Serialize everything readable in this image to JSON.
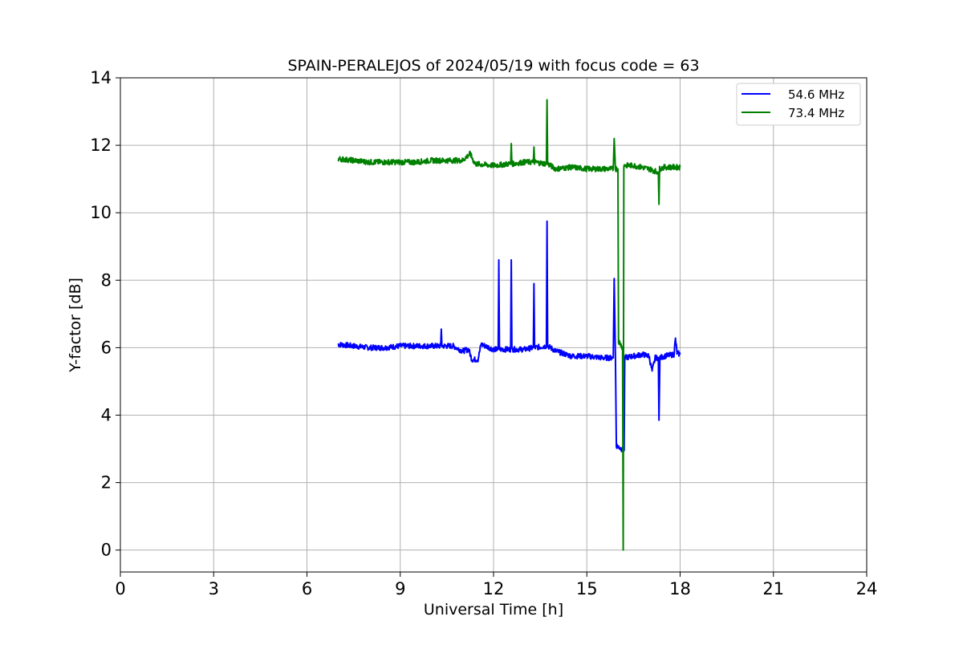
{
  "chart_data": {
    "type": "line",
    "title": "SPAIN-PERALEJOS of 2024/05/19 with focus code = 63",
    "xlabel": "Universal Time [h]",
    "ylabel": "Y-factor [dB]",
    "xlim": [
      0,
      24
    ],
    "ylim": [
      -0.65,
      14
    ],
    "xticks": [
      0,
      3,
      6,
      9,
      12,
      15,
      18,
      21,
      24
    ],
    "yticks": [
      0,
      2,
      4,
      6,
      8,
      10,
      12,
      14
    ],
    "grid": true,
    "legend_position": "top-right",
    "series": [
      {
        "name": "54.6 MHz",
        "color": "#0000ff",
        "noise": 0.08,
        "points": [
          [
            7.0,
            6.1
          ],
          [
            7.5,
            6.05
          ],
          [
            8.0,
            6.0
          ],
          [
            8.5,
            6.0
          ],
          [
            9.0,
            6.05
          ],
          [
            9.5,
            6.05
          ],
          [
            10.0,
            6.05
          ],
          [
            10.3,
            6.05
          ],
          [
            10.32,
            6.55
          ],
          [
            10.34,
            6.05
          ],
          [
            10.7,
            6.05
          ],
          [
            11.0,
            5.9
          ],
          [
            11.2,
            5.95
          ],
          [
            11.3,
            5.65
          ],
          [
            11.5,
            5.65
          ],
          [
            11.6,
            6.1
          ],
          [
            12.0,
            5.95
          ],
          [
            12.15,
            5.95
          ],
          [
            12.17,
            8.6
          ],
          [
            12.19,
            5.95
          ],
          [
            12.55,
            5.95
          ],
          [
            12.57,
            8.6
          ],
          [
            12.59,
            5.95
          ],
          [
            13.0,
            5.95
          ],
          [
            13.28,
            6.0
          ],
          [
            13.3,
            7.9
          ],
          [
            13.32,
            6.0
          ],
          [
            13.7,
            6.05
          ],
          [
            13.72,
            9.75
          ],
          [
            13.74,
            6.05
          ],
          [
            14.0,
            5.9
          ],
          [
            14.5,
            5.75
          ],
          [
            15.0,
            5.75
          ],
          [
            15.5,
            5.7
          ],
          [
            15.85,
            5.7
          ],
          [
            15.88,
            8.05
          ],
          [
            15.92,
            5.7
          ],
          [
            15.95,
            3.1
          ],
          [
            16.2,
            2.95
          ],
          [
            16.22,
            5.7
          ],
          [
            16.5,
            5.75
          ],
          [
            16.8,
            5.8
          ],
          [
            17.0,
            5.75
          ],
          [
            17.1,
            5.3
          ],
          [
            17.2,
            5.7
          ],
          [
            17.3,
            5.7
          ],
          [
            17.32,
            3.85
          ],
          [
            17.35,
            5.7
          ],
          [
            17.5,
            5.75
          ],
          [
            17.8,
            5.8
          ],
          [
            17.85,
            6.25
          ],
          [
            17.9,
            5.85
          ],
          [
            18.0,
            5.8
          ]
        ]
      },
      {
        "name": "73.4 MHz",
        "color": "#008000",
        "noise": 0.08,
        "points": [
          [
            7.0,
            11.6
          ],
          [
            7.5,
            11.55
          ],
          [
            8.0,
            11.5
          ],
          [
            8.5,
            11.5
          ],
          [
            9.0,
            11.5
          ],
          [
            9.5,
            11.5
          ],
          [
            10.0,
            11.55
          ],
          [
            10.5,
            11.55
          ],
          [
            11.0,
            11.55
          ],
          [
            11.25,
            11.75
          ],
          [
            11.4,
            11.45
          ],
          [
            12.0,
            11.4
          ],
          [
            12.5,
            11.45
          ],
          [
            12.55,
            11.45
          ],
          [
            12.57,
            12.05
          ],
          [
            12.59,
            11.45
          ],
          [
            13.0,
            11.5
          ],
          [
            13.28,
            11.5
          ],
          [
            13.3,
            11.95
          ],
          [
            13.32,
            11.5
          ],
          [
            13.7,
            11.45
          ],
          [
            13.72,
            13.35
          ],
          [
            13.74,
            11.45
          ],
          [
            14.0,
            11.3
          ],
          [
            14.5,
            11.35
          ],
          [
            15.0,
            11.3
          ],
          [
            15.5,
            11.3
          ],
          [
            15.85,
            11.3
          ],
          [
            15.88,
            12.2
          ],
          [
            15.92,
            11.3
          ],
          [
            16.0,
            11.3
          ],
          [
            16.02,
            6.2
          ],
          [
            16.15,
            6.0
          ],
          [
            16.17,
            0.0
          ],
          [
            16.19,
            11.4
          ],
          [
            16.5,
            11.4
          ],
          [
            17.0,
            11.3
          ],
          [
            17.3,
            11.2
          ],
          [
            17.32,
            10.25
          ],
          [
            17.34,
            11.3
          ],
          [
            17.5,
            11.35
          ],
          [
            18.0,
            11.35
          ]
        ]
      }
    ]
  }
}
